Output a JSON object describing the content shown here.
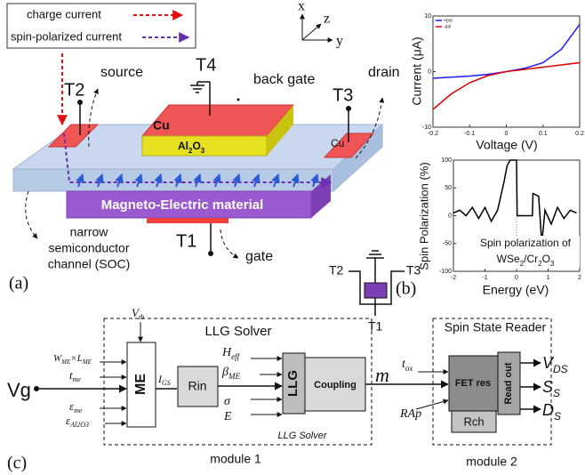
{
  "panel_a": {
    "legend": [
      "charge current",
      "spin-polarized current"
    ],
    "axes": [
      "x",
      "z",
      "y"
    ],
    "T4": "T4",
    "back_gate": "back gate",
    "T2": "T2",
    "source": "source",
    "T3": "T3",
    "drain": "drain",
    "cu_labels": [
      "Cu",
      "Cu"
    ],
    "al2o3": {
      "main": [
        "Al",
        "O"
      ],
      "sub": [
        "2",
        "3"
      ]
    },
    "me_material": "Magneto-Electric material",
    "T1": "T1",
    "gate": "gate",
    "channel": [
      "narrow",
      "semiconductor",
      "channel (SOC)"
    ],
    "label": "(a)"
  },
  "circuit": {
    "T2": "T2",
    "T3": "T3",
    "T1": "T1"
  },
  "panel_b": {
    "label": "(b)"
  },
  "chart_data": [
    {
      "type": "line",
      "ylabel": "Current (μA)",
      "xlabel": "Voltage (V)",
      "x": [
        -0.2,
        -0.15,
        -0.1,
        -0.05,
        0,
        0.05,
        0.1,
        0.15,
        0.2
      ],
      "xlim": [
        -0.2,
        0.2
      ],
      "xticks": [
        -0.2,
        -0.1,
        0,
        0.1,
        0.2
      ],
      "ylim": [
        -10,
        10
      ],
      "yticks": [
        -10,
        0,
        10
      ],
      "series": [
        {
          "name": "+pol",
          "color": "#1a1aff",
          "values": [
            -1.2,
            -1.0,
            -0.8,
            -0.5,
            0,
            0.6,
            1.6,
            4,
            8.5
          ]
        },
        {
          "name": "-pol",
          "color": "#e00000",
          "values": [
            -6.8,
            -4,
            -2,
            -0.7,
            0,
            0.4,
            0.8,
            1.2,
            1.6
          ]
        }
      ]
    },
    {
      "type": "line",
      "ylabel": "Spin Polarization (%)",
      "xlabel": "Energy (eV)",
      "annotation": {
        "line1": "Spin polarization of",
        "line2": {
          "main": [
            "WSe",
            "/Cr",
            "O"
          ],
          "sub": [
            "2",
            "2",
            "3"
          ]
        }
      },
      "x": [
        -2,
        -1.8,
        -1.6,
        -1.4,
        -1.2,
        -1,
        -0.8,
        -0.6,
        -0.4,
        -0.3,
        -0.2,
        0,
        0.02,
        0.3,
        0.5,
        0.52,
        0.7,
        0.8,
        0.9,
        1.1,
        1.3,
        1.5,
        1.7,
        1.9
      ],
      "xlim": [
        -2,
        2
      ],
      "xticks": [
        -2,
        -1,
        0,
        1,
        2
      ],
      "ylim": [
        -100,
        100
      ],
      "yticks": [
        -100,
        -50,
        0,
        50,
        100
      ],
      "series": [
        {
          "color": "#000000",
          "values": [
            5,
            10,
            0,
            15,
            -5,
            15,
            -10,
            10,
            60,
            90,
            100,
            100,
            0,
            0,
            0,
            40,
            35,
            -50,
            10,
            -15,
            15,
            -5,
            10,
            5
          ]
        }
      ]
    }
  ],
  "panel_c": {
    "vg": "Vg",
    "vth": {
      "main": [
        "V"
      ],
      "sub": [
        "th"
      ]
    },
    "w_l": {
      "main": [
        "W",
        "×L"
      ],
      "sub": [
        "ME",
        "ME"
      ]
    },
    "t_me": {
      "main": [
        "t"
      ],
      "sub": [
        "me"
      ]
    },
    "eps_me": {
      "main": [
        "ε"
      ],
      "sub": [
        "me"
      ]
    },
    "eps_al": {
      "main": [
        "ε"
      ],
      "sub": [
        "Al2O3"
      ]
    },
    "me": "ME",
    "igs": {
      "main": [
        "I"
      ],
      "sub": [
        "GS"
      ]
    },
    "rin": "Rin",
    "heff": {
      "main": [
        "H"
      ],
      "sub": [
        "eff"
      ]
    },
    "beta": {
      "main": [
        "β"
      ],
      "sub": [
        "ME"
      ]
    },
    "sigma": "σ",
    "e": "E",
    "llg": "LLG",
    "coupling": "Coupling",
    "m": "m",
    "llg_title": "LLG Solver",
    "llg_caption": "LLG Solver",
    "module1": "module 1",
    "reader_title": "Spin State Reader",
    "tox": {
      "main": [
        "t"
      ],
      "sub": [
        "ox"
      ]
    },
    "rap": "RAp",
    "fet": "FET res",
    "rch": "Rch",
    "readout": "Read out",
    "vds": {
      "main": [
        "V"
      ],
      "sub": [
        "DS"
      ]
    },
    "ss": {
      "main": [
        "S"
      ],
      "sub": [
        "S"
      ]
    },
    "ds": {
      "main": [
        "D"
      ],
      "sub": [
        "S"
      ]
    },
    "module2": "module 2",
    "label": "(c)"
  }
}
